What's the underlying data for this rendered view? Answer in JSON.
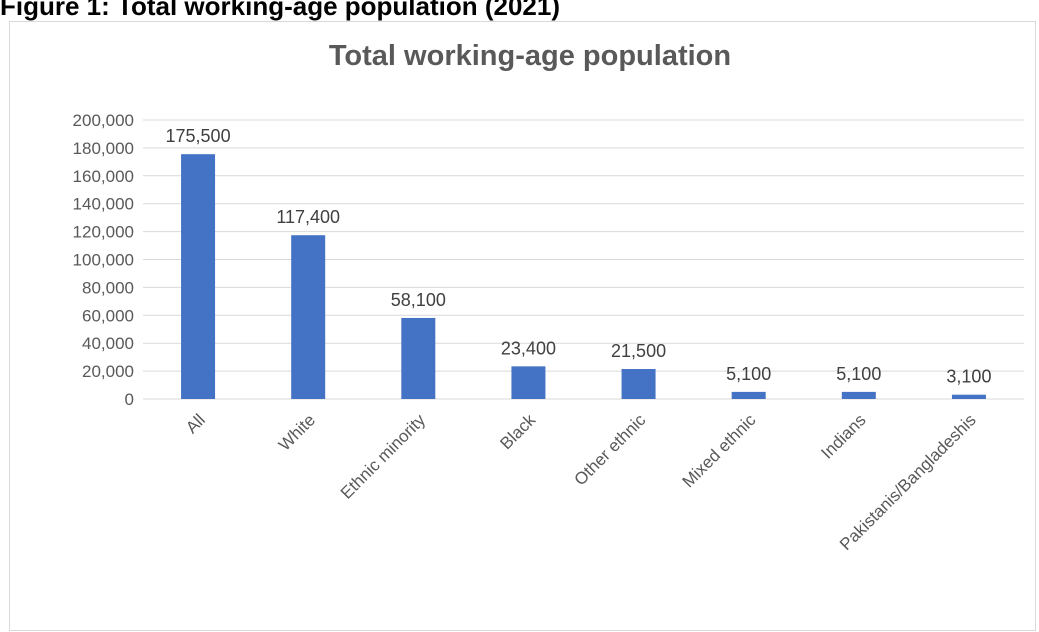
{
  "page": {
    "heading": "Figure 1: Total working-age population (2021)"
  },
  "chart_data": {
    "type": "bar",
    "title": "Total working-age population",
    "xlabel": "",
    "ylabel": "",
    "categories": [
      "All",
      "White",
      "Ethnic minority",
      "Black",
      "Other ethnic",
      "Mixed ethnic",
      "Indians",
      "Pakistanis/Bangladeshis"
    ],
    "values": [
      175500,
      117400,
      58100,
      23400,
      21500,
      5100,
      5100,
      3100
    ],
    "data_labels": [
      "175,500",
      "117,400",
      "58,100",
      "23,400",
      "21,500",
      "5,100",
      "5,100",
      "3,100"
    ],
    "ylim": [
      0,
      200000
    ],
    "yticks": [
      0,
      20000,
      40000,
      60000,
      80000,
      100000,
      120000,
      140000,
      160000,
      180000,
      200000
    ],
    "ytick_labels": [
      "0",
      "20,000",
      "40,000",
      "60,000",
      "80,000",
      "100,000",
      "120,000",
      "140,000",
      "160,000",
      "180,000",
      "200,000"
    ],
    "grid": true,
    "legend": "none",
    "bar_color": "#4472C4",
    "gridline_color": "#d9d9d9"
  }
}
